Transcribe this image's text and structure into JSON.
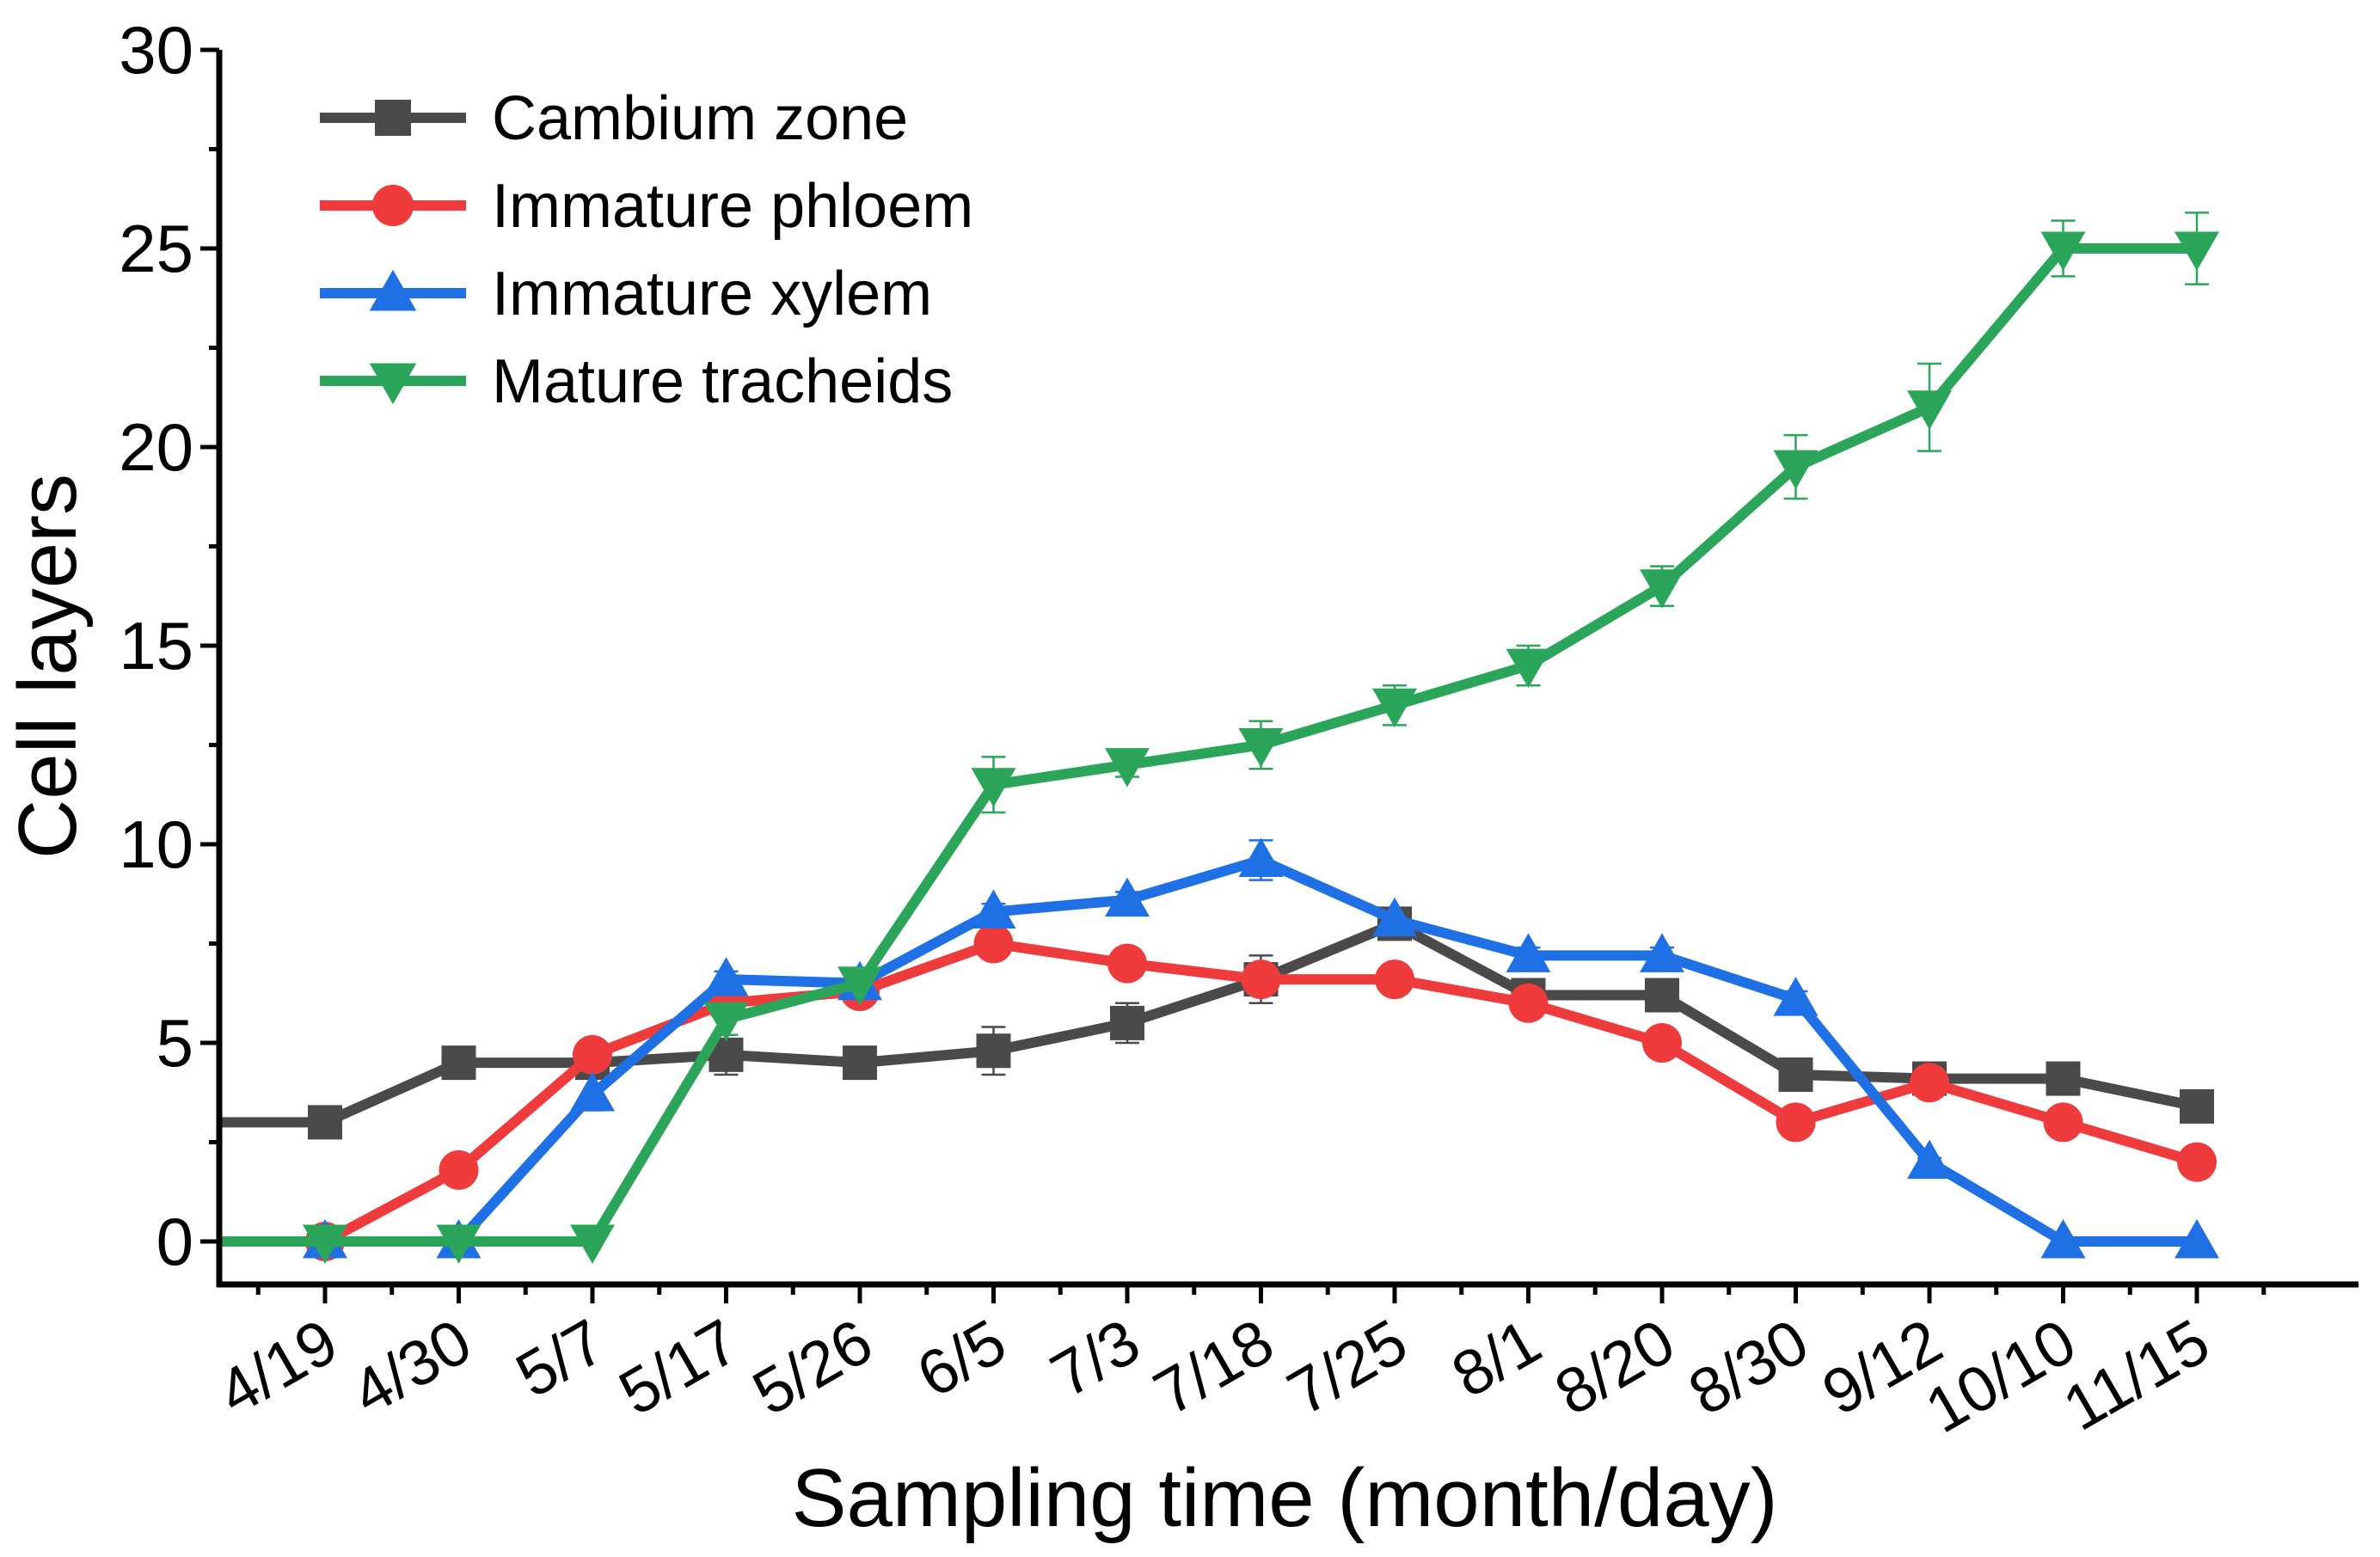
{
  "chart_data": {
    "type": "line",
    "title": "",
    "xlabel": "Sampling time (month/day)",
    "ylabel": "Cell layers",
    "ylim": [
      0,
      30
    ],
    "yticks": [
      0,
      5,
      10,
      15,
      20,
      25,
      30
    ],
    "categories": [
      "4/19",
      "4/30",
      "5/7",
      "5/17",
      "5/26",
      "6/5",
      "7/3",
      "7/18",
      "7/25",
      "8/1",
      "8/20",
      "8/30",
      "9/12",
      "10/10",
      "11/15"
    ],
    "legend_position": "top-left",
    "series": [
      {
        "name": "Cambium zone",
        "color": "#4a4a4a",
        "marker": "square",
        "leading_value": 3.0,
        "values": [
          3.0,
          4.5,
          4.5,
          4.7,
          4.5,
          4.8,
          5.5,
          6.6,
          8.0,
          6.2,
          6.2,
          4.2,
          4.1,
          4.1,
          3.4
        ],
        "errors": [
          0.1,
          0.3,
          0.2,
          0.5,
          0.3,
          0.6,
          0.5,
          0.6,
          0.4,
          0.3,
          0.3,
          0.2,
          0.2,
          0.2,
          0.3
        ]
      },
      {
        "name": "Immature phloem",
        "color": "#ef3b3b",
        "marker": "circle",
        "values": [
          0,
          1.8,
          4.7,
          6.0,
          6.3,
          7.5,
          7.0,
          6.6,
          6.6,
          6.0,
          5.0,
          3.0,
          4.0,
          3.0,
          2.0
        ],
        "errors": [
          0,
          0.1,
          0.1,
          0.2,
          0.1,
          0.2,
          0.2,
          0.2,
          0.1,
          0.1,
          0.1,
          0.1,
          0.2,
          0.1,
          0.1
        ]
      },
      {
        "name": "Immature xylem",
        "color": "#1f6fe5",
        "marker": "triangle-up",
        "values": [
          0,
          0,
          3.7,
          6.6,
          6.5,
          8.3,
          8.6,
          9.6,
          8.1,
          7.2,
          7.2,
          6.1,
          2.0,
          0,
          0
        ],
        "errors": [
          0,
          0,
          0.4,
          0.2,
          0.2,
          0.2,
          0.2,
          0.5,
          0.3,
          0.2,
          0.2,
          0.2,
          0.1,
          0,
          0
        ]
      },
      {
        "name": "Mature tracheids",
        "color": "#2aa55a",
        "marker": "triangle-down",
        "leading_value": 0,
        "values": [
          0,
          0,
          0,
          5.6,
          6.5,
          11.5,
          12.0,
          12.5,
          13.5,
          14.5,
          16.5,
          19.5,
          21.0,
          25.0,
          25.0
        ],
        "errors": [
          0,
          0,
          0,
          0.4,
          0.2,
          0.7,
          0.3,
          0.6,
          0.5,
          0.5,
          0.5,
          0.8,
          1.1,
          0.7,
          0.9
        ]
      }
    ]
  }
}
